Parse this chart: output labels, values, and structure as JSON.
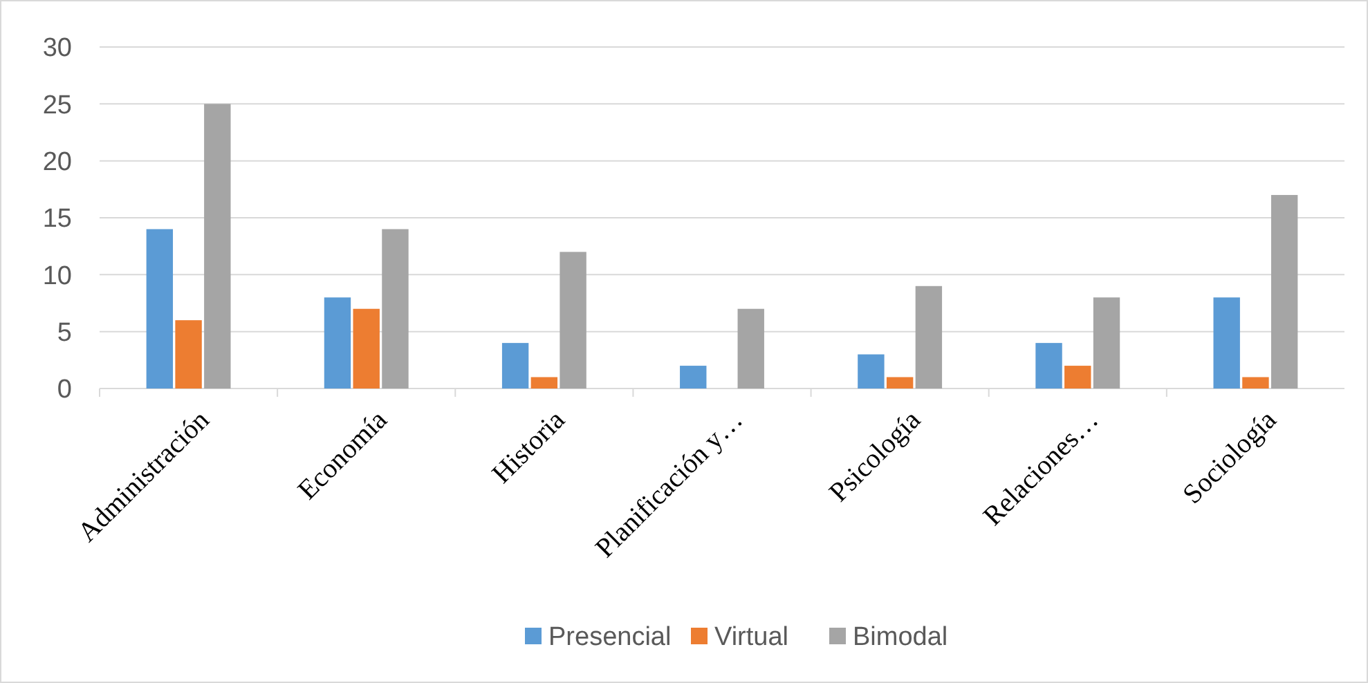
{
  "chart_data": {
    "type": "bar",
    "categories": [
      "Administración",
      "Economía",
      "Historia",
      "Planificación y…",
      "Psicología",
      "Relaciones…",
      "Sociología"
    ],
    "series": [
      {
        "name": "Presencial",
        "color": "#5b9bd5",
        "values": [
          14,
          8,
          4,
          2,
          3,
          4,
          8
        ]
      },
      {
        "name": "Virtual",
        "color": "#ed7d31",
        "values": [
          6,
          7,
          1,
          0,
          1,
          2,
          1
        ]
      },
      {
        "name": "Bimodal",
        "color": "#a5a5a5",
        "values": [
          25,
          14,
          12,
          7,
          9,
          8,
          17
        ]
      }
    ],
    "ylim": [
      0,
      30
    ],
    "yticks": [
      0,
      5,
      10,
      15,
      20,
      25,
      30
    ],
    "grid": "y",
    "legend": "bottom"
  }
}
